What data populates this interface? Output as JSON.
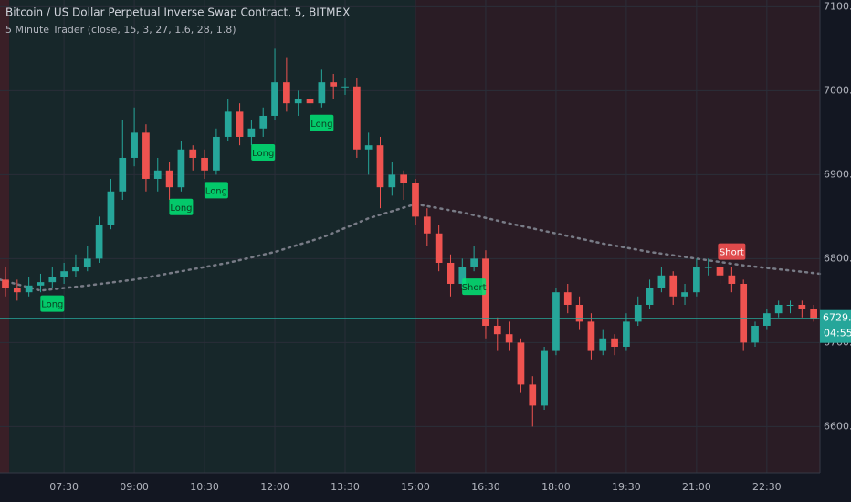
{
  "chart_data": {
    "type": "candlestick",
    "title": "Bitcoin / US Dollar Perpetual Inverse Swap Contract, 5, BITMEX",
    "subtitle": "5 Minute Trader (close, 15, 3, 27, 1.6, 28, 1.8)",
    "xlim": [
      368,
      1418
    ],
    "ylim": [
      6545,
      7108
    ],
    "xticks": [
      {
        "value": 450,
        "label": "07:30"
      },
      {
        "value": 540,
        "label": "09:00"
      },
      {
        "value": 630,
        "label": "10:30"
      },
      {
        "value": 720,
        "label": "12:00"
      },
      {
        "value": 810,
        "label": "13:30"
      },
      {
        "value": 900,
        "label": "15:00"
      },
      {
        "value": 990,
        "label": "16:30"
      },
      {
        "value": 1080,
        "label": "18:00"
      },
      {
        "value": 1170,
        "label": "19:30"
      },
      {
        "value": 1260,
        "label": "21:00"
      },
      {
        "value": 1350,
        "label": "22:30"
      }
    ],
    "yticks": [
      {
        "value": 7100,
        "label": "7100.0"
      },
      {
        "value": 7000,
        "label": "7000.0"
      },
      {
        "value": 6900,
        "label": "6900.0"
      },
      {
        "value": 6800,
        "label": "6800.0"
      },
      {
        "value": 6700,
        "label": "6700.0"
      },
      {
        "value": 6600,
        "label": "6600.0"
      }
    ],
    "grid": true,
    "up_color": "#26a69a",
    "down_color": "#ef5350",
    "x": [
      375,
      390,
      405,
      420,
      435,
      450,
      465,
      480,
      495,
      510,
      525,
      540,
      555,
      570,
      585,
      600,
      615,
      630,
      645,
      660,
      675,
      690,
      705,
      720,
      735,
      750,
      765,
      780,
      795,
      810,
      825,
      840,
      855,
      870,
      885,
      900,
      915,
      930,
      945,
      960,
      975,
      990,
      1005,
      1020,
      1035,
      1050,
      1065,
      1080,
      1095,
      1110,
      1125,
      1140,
      1155,
      1170,
      1185,
      1200,
      1215,
      1230,
      1245,
      1260,
      1275,
      1290,
      1305,
      1320,
      1335,
      1350,
      1365,
      1380,
      1395,
      1410
    ],
    "open": [
      6775,
      6765,
      6760,
      6768,
      6772,
      6778,
      6785,
      6790,
      6800,
      6840,
      6880,
      6920,
      6950,
      6895,
      6905,
      6885,
      6930,
      6920,
      6905,
      6945,
      6975,
      6945,
      6955,
      6970,
      7010,
      6985,
      6990,
      6985,
      7010,
      7005,
      7005,
      6930,
      6935,
      6885,
      6900,
      6890,
      6850,
      6830,
      6795,
      6770,
      6790,
      6800,
      6720,
      6710,
      6700,
      6650,
      6625,
      6690,
      6760,
      6745,
      6725,
      6690,
      6705,
      6695,
      6725,
      6745,
      6765,
      6780,
      6755,
      6760,
      6790,
      6790,
      6780,
      6770,
      6700,
      6720,
      6735,
      6745,
      6745,
      6740
    ],
    "high": [
      6790,
      6775,
      6778,
      6782,
      6790,
      6795,
      6805,
      6815,
      6850,
      6895,
      6965,
      6980,
      6960,
      6920,
      6915,
      6940,
      6935,
      6930,
      6955,
      6990,
      6985,
      6965,
      6980,
      7050,
      7040,
      7000,
      6995,
      7025,
      7020,
      7015,
      7015,
      6950,
      6945,
      6915,
      6905,
      6895,
      6860,
      6840,
      6805,
      6800,
      6815,
      6810,
      6730,
      6725,
      6705,
      6660,
      6695,
      6765,
      6770,
      6755,
      6735,
      6715,
      6710,
      6735,
      6755,
      6775,
      6790,
      6785,
      6770,
      6800,
      6800,
      6795,
      6790,
      6775,
      6725,
      6740,
      6750,
      6750,
      6750,
      6745
    ],
    "low": [
      6755,
      6750,
      6755,
      6760,
      6765,
      6770,
      6778,
      6785,
      6795,
      6835,
      6870,
      6910,
      6880,
      6880,
      6870,
      6880,
      6905,
      6895,
      6900,
      6940,
      6935,
      6935,
      6945,
      6965,
      6975,
      6970,
      6970,
      6980,
      6990,
      6995,
      6920,
      6900,
      6860,
      6875,
      6870,
      6840,
      6815,
      6785,
      6755,
      6765,
      6785,
      6705,
      6690,
      6690,
      6640,
      6600,
      6620,
      6685,
      6735,
      6715,
      6680,
      6685,
      6685,
      6690,
      6720,
      6740,
      6760,
      6745,
      6745,
      6755,
      6780,
      6770,
      6760,
      6690,
      6695,
      6715,
      6730,
      6735,
      6730,
      6725
    ],
    "close": [
      6765,
      6760,
      6768,
      6772,
      6778,
      6785,
      6790,
      6800,
      6840,
      6880,
      6920,
      6950,
      6895,
      6905,
      6885,
      6930,
      6920,
      6905,
      6945,
      6975,
      6945,
      6955,
      6970,
      7010,
      6985,
      6990,
      6985,
      7010,
      7005,
      7005,
      6930,
      6935,
      6885,
      6900,
      6890,
      6850,
      6830,
      6795,
      6770,
      6790,
      6800,
      6720,
      6710,
      6700,
      6650,
      6625,
      6690,
      6760,
      6745,
      6725,
      6690,
      6705,
      6695,
      6725,
      6745,
      6765,
      6780,
      6755,
      6760,
      6790,
      6790,
      6780,
      6770,
      6700,
      6720,
      6735,
      6745,
      6745,
      6740,
      6729
    ],
    "ma": {
      "color": "#787b86",
      "x": [
        368,
        420,
        480,
        540,
        600,
        660,
        720,
        780,
        840,
        900,
        960,
        1020,
        1080,
        1140,
        1200,
        1260,
        1320,
        1418
      ],
      "values": [
        6775,
        6762,
        6768,
        6775,
        6785,
        6795,
        6808,
        6825,
        6848,
        6865,
        6855,
        6842,
        6830,
        6818,
        6808,
        6800,
        6792,
        6782
      ]
    },
    "zones": [
      {
        "from": 368,
        "to": 380,
        "color": "#3a1f27"
      },
      {
        "from": 380,
        "to": 900,
        "color": "#17272a"
      },
      {
        "from": 900,
        "to": 1418,
        "color": "#2a1c25"
      }
    ],
    "signals": [
      {
        "label": "Long",
        "x": 435
      },
      {
        "label": "Long",
        "x": 600
      },
      {
        "label": "Long",
        "x": 645
      },
      {
        "label": "Long",
        "x": 705
      },
      {
        "label": "Long",
        "x": 780
      },
      {
        "label": "Short",
        "x": 975
      },
      {
        "label": "Short",
        "x": 1305
      }
    ],
    "last_price_label": "6729.0",
    "countdown": "04:55"
  }
}
